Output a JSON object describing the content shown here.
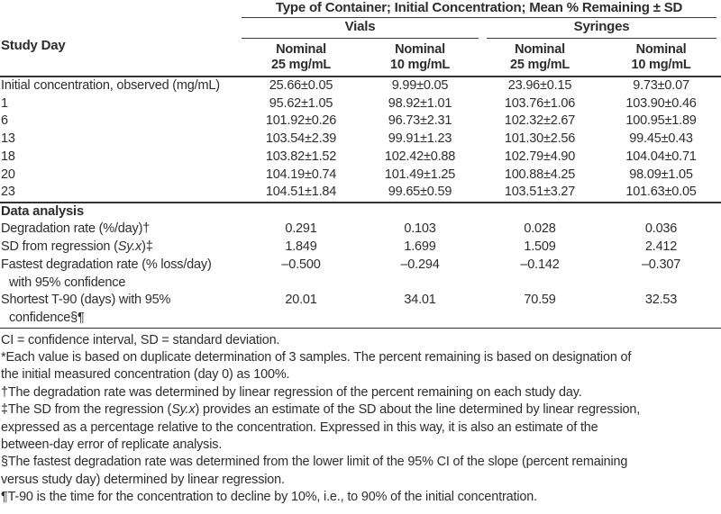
{
  "header": {
    "top_header": "Type of Container; Initial Concentration; Mean % Remaining ± SD",
    "row_header": "Study Day",
    "groups": [
      {
        "label": "Vials"
      },
      {
        "label": "Syringes"
      }
    ],
    "columns": [
      {
        "top": "Nominal",
        "bottom": "25 mg/mL"
      },
      {
        "top": "Nominal",
        "bottom": "10 mg/mL"
      },
      {
        "top": "Nominal",
        "bottom": "25 mg/mL"
      },
      {
        "top": "Nominal",
        "bottom": "10 mg/mL"
      }
    ]
  },
  "rows": [
    {
      "label": "Initial concentration, observed (mg/mL)",
      "values": [
        "25.66±0.05",
        "9.99±0.05",
        "23.96±0.15",
        "9.73±0.07"
      ]
    },
    {
      "label": "1",
      "values": [
        "95.62±1.05",
        "98.92±1.01",
        "103.76±1.06",
        "103.90±0.46"
      ]
    },
    {
      "label": "6",
      "values": [
        "101.92±0.26",
        "96.73±2.31",
        "102.32±2.67",
        "100.95±1.89"
      ]
    },
    {
      "label": "13",
      "values": [
        "103.54±2.39",
        "99.91±1.23",
        "101.30±2.56",
        "99.45±0.43"
      ]
    },
    {
      "label": "18",
      "values": [
        "103.82±1.52",
        "102.42±0.88",
        "102.79±4.90",
        "104.04±0.71"
      ]
    },
    {
      "label": "20",
      "values": [
        "104.19±0.74",
        "101.49±1.25",
        "100.88±4.25",
        "98.09±1.05"
      ]
    },
    {
      "label": "23",
      "values": [
        "104.51±1.84",
        "99.65±0.59",
        "103.51±3.27",
        "101.63±0.05"
      ]
    }
  ],
  "analysis": {
    "section_label": "Data analysis",
    "rows": [
      {
        "label_pre": "Degradation rate (%/day)†",
        "label_italic": "",
        "label_post": "",
        "label_line2": "",
        "values": [
          "0.291",
          "0.103",
          "0.028",
          "0.036"
        ]
      },
      {
        "label_pre": "SD from regression (",
        "label_italic": "Sy.x",
        "label_post": ")‡",
        "label_line2": "",
        "values": [
          "1.849",
          "1.699",
          "1.509",
          "2.412"
        ]
      },
      {
        "label_pre": "Fastest degradation rate (% loss/day)",
        "label_italic": "",
        "label_post": "",
        "label_line2": "with 95% confidence",
        "values": [
          "–0.500",
          "–0.294",
          "–0.142",
          "–0.307"
        ]
      },
      {
        "label_pre": "Shortest T-90 (days) with 95%",
        "label_italic": "",
        "label_post": "",
        "label_line2": "confidence§¶",
        "values": [
          "20.01",
          "34.01",
          "70.59",
          "32.53"
        ]
      }
    ]
  },
  "footnotes": [
    {
      "pre": "CI = confidence interval, SD = standard deviation.",
      "italic": "",
      "post": ""
    },
    {
      "pre": "*Each value is based on duplicate determination of 3 samples. The percent remaining is based on designation of",
      "italic": "",
      "post": ""
    },
    {
      "pre": "the initial measured concentration (day 0) as 100%.",
      "italic": "",
      "post": ""
    },
    {
      "pre": "†The degradation rate was determined by linear regression of the percent remaining on each study day.",
      "italic": "",
      "post": ""
    },
    {
      "pre": "‡The SD from the regression (",
      "italic": "Sy.x",
      "post": ") provides an estimate of the SD about the line determined by linear regression,"
    },
    {
      "pre": "expressed as a percentage relative to the concentration. Expressed in this way, it is also an estimate of the",
      "italic": "",
      "post": ""
    },
    {
      "pre": "between-day error of replicate analysis.",
      "italic": "",
      "post": ""
    },
    {
      "pre": "§The fastest degradation rate was determined from the lower limit of the 95% CI of the slope (percent remaining",
      "italic": "",
      "post": ""
    },
    {
      "pre": "versus study day) determined by linear regression.",
      "italic": "",
      "post": ""
    },
    {
      "pre": "¶T-90 is the time for the concentration to decline by 10%, i.e., to 90% of the initial concentration.",
      "italic": "",
      "post": ""
    }
  ]
}
